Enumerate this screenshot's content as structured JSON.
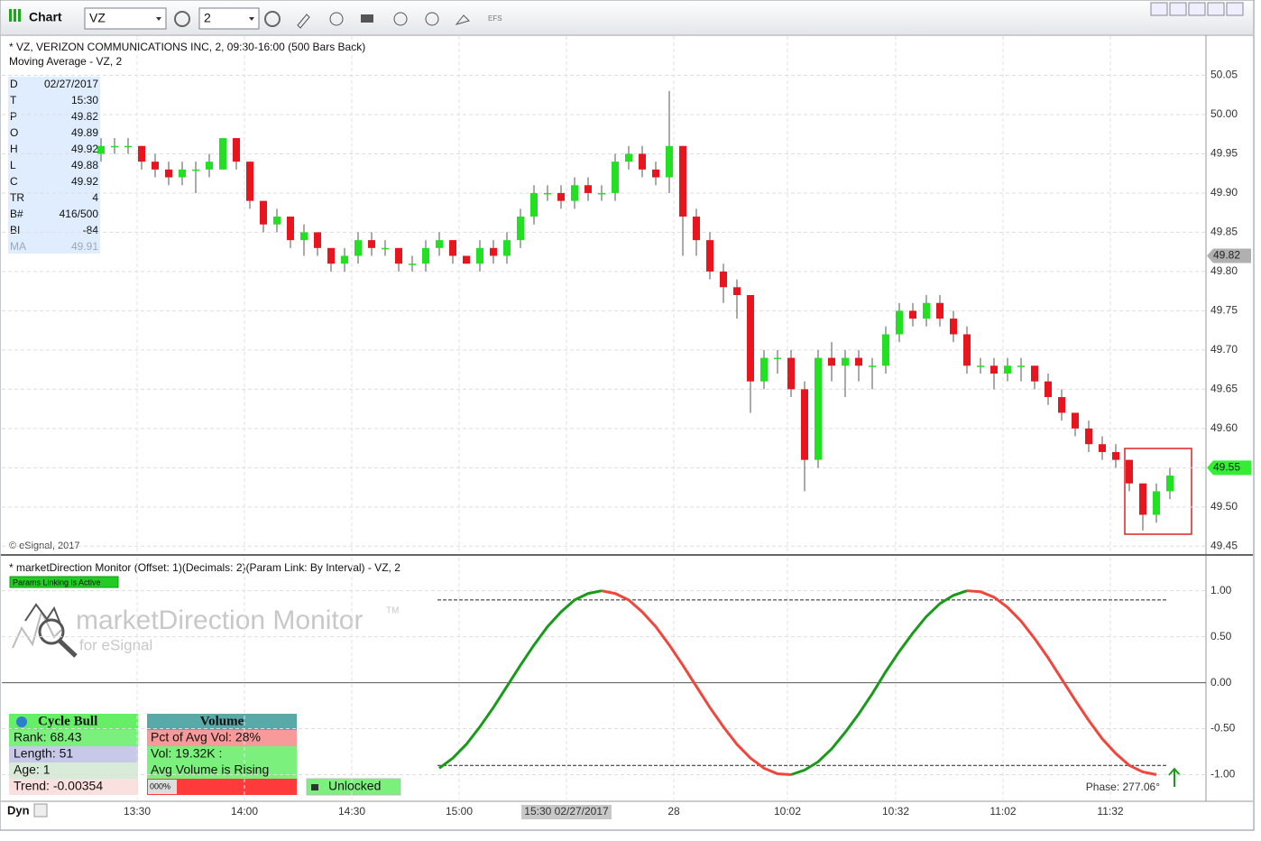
{
  "toolbar": {
    "title": "Chart",
    "symbol": "VZ",
    "interval": "2",
    "efs": "EFS"
  },
  "chart_data": {
    "type": "candlestick",
    "title": "* VZ, VERIZON COMMUNICATIONS INC, 2, 09:30-16:00 (500 Bars Back)",
    "subtitle": "Moving Average - VZ, 2",
    "copyright": "© eSignal, 2017",
    "up_color": "#22e022",
    "down_color": "#e8141e",
    "candles": [
      [
        49.95,
        49.97,
        49.94,
        49.96
      ],
      [
        49.96,
        49.97,
        49.95,
        49.96
      ],
      [
        49.96,
        49.97,
        49.95,
        49.96
      ],
      [
        49.96,
        49.96,
        49.93,
        49.94
      ],
      [
        49.94,
        49.95,
        49.92,
        49.93
      ],
      [
        49.93,
        49.94,
        49.91,
        49.92
      ],
      [
        49.92,
        49.94,
        49.91,
        49.93
      ],
      [
        49.93,
        49.94,
        49.9,
        49.93
      ],
      [
        49.93,
        49.95,
        49.92,
        49.94
      ],
      [
        49.93,
        49.97,
        49.93,
        49.97
      ],
      [
        49.97,
        49.97,
        49.93,
        49.94
      ],
      [
        49.94,
        49.94,
        49.88,
        49.89
      ],
      [
        49.89,
        49.89,
        49.85,
        49.86
      ],
      [
        49.86,
        49.88,
        49.85,
        49.87
      ],
      [
        49.87,
        49.87,
        49.83,
        49.84
      ],
      [
        49.84,
        49.86,
        49.82,
        49.85
      ],
      [
        49.85,
        49.85,
        49.82,
        49.83
      ],
      [
        49.83,
        49.83,
        49.8,
        49.81
      ],
      [
        49.81,
        49.83,
        49.8,
        49.82
      ],
      [
        49.82,
        49.85,
        49.81,
        49.84
      ],
      [
        49.84,
        49.85,
        49.82,
        49.83
      ],
      [
        49.83,
        49.84,
        49.82,
        49.83
      ],
      [
        49.83,
        49.83,
        49.8,
        49.81
      ],
      [
        49.81,
        49.82,
        49.8,
        49.81
      ],
      [
        49.81,
        49.84,
        49.8,
        49.83
      ],
      [
        49.83,
        49.85,
        49.82,
        49.84
      ],
      [
        49.84,
        49.84,
        49.81,
        49.82
      ],
      [
        49.82,
        49.82,
        49.81,
        49.81
      ],
      [
        49.81,
        49.84,
        49.8,
        49.83
      ],
      [
        49.83,
        49.84,
        49.81,
        49.82
      ],
      [
        49.82,
        49.85,
        49.81,
        49.84
      ],
      [
        49.84,
        49.88,
        49.83,
        49.87
      ],
      [
        49.87,
        49.91,
        49.86,
        49.9
      ],
      [
        49.9,
        49.91,
        49.89,
        49.9
      ],
      [
        49.9,
        49.91,
        49.88,
        49.89
      ],
      [
        49.89,
        49.92,
        49.88,
        49.91
      ],
      [
        49.91,
        49.92,
        49.89,
        49.9
      ],
      [
        49.9,
        49.91,
        49.89,
        49.9
      ],
      [
        49.9,
        49.95,
        49.89,
        49.94
      ],
      [
        49.94,
        49.96,
        49.93,
        49.95
      ],
      [
        49.95,
        49.96,
        49.92,
        49.93
      ],
      [
        49.93,
        49.94,
        49.91,
        49.92
      ],
      [
        49.92,
        50.03,
        49.9,
        49.96
      ],
      [
        49.96,
        49.96,
        49.82,
        49.87
      ],
      [
        49.87,
        49.88,
        49.82,
        49.84
      ],
      [
        49.84,
        49.85,
        49.79,
        49.8
      ],
      [
        49.8,
        49.81,
        49.76,
        49.78
      ],
      [
        49.78,
        49.79,
        49.74,
        49.77
      ],
      [
        49.77,
        49.77,
        49.62,
        49.66
      ],
      [
        49.66,
        49.7,
        49.65,
        49.69
      ],
      [
        49.69,
        49.7,
        49.67,
        49.69
      ],
      [
        49.69,
        49.7,
        49.64,
        49.65
      ],
      [
        49.65,
        49.66,
        49.52,
        49.56
      ],
      [
        49.56,
        49.7,
        49.55,
        49.69
      ],
      [
        49.69,
        49.71,
        49.66,
        49.68
      ],
      [
        49.68,
        49.7,
        49.64,
        49.69
      ],
      [
        49.69,
        49.7,
        49.66,
        49.68
      ],
      [
        49.68,
        49.69,
        49.65,
        49.68
      ],
      [
        49.68,
        49.73,
        49.67,
        49.72
      ],
      [
        49.72,
        49.76,
        49.71,
        49.75
      ],
      [
        49.75,
        49.76,
        49.73,
        49.74
      ],
      [
        49.74,
        49.77,
        49.73,
        49.76
      ],
      [
        49.76,
        49.77,
        49.73,
        49.74
      ],
      [
        49.74,
        49.75,
        49.71,
        49.72
      ],
      [
        49.72,
        49.73,
        49.67,
        49.68
      ],
      [
        49.68,
        49.69,
        49.67,
        49.68
      ],
      [
        49.68,
        49.69,
        49.65,
        49.67
      ],
      [
        49.67,
        49.69,
        49.66,
        49.68
      ],
      [
        49.68,
        49.69,
        49.66,
        49.68
      ],
      [
        49.68,
        49.68,
        49.65,
        49.66
      ],
      [
        49.66,
        49.67,
        49.63,
        49.64
      ],
      [
        49.64,
        49.65,
        49.61,
        49.62
      ],
      [
        49.62,
        49.62,
        49.59,
        49.6
      ],
      [
        49.6,
        49.61,
        49.57,
        49.58
      ],
      [
        49.58,
        49.59,
        49.56,
        49.57
      ],
      [
        49.57,
        49.58,
        49.55,
        49.56
      ],
      [
        49.56,
        49.56,
        49.52,
        49.53
      ],
      [
        49.53,
        49.53,
        49.47,
        49.49
      ],
      [
        49.49,
        49.53,
        49.48,
        49.52
      ],
      [
        49.52,
        49.55,
        49.51,
        49.54
      ]
    ],
    "ylim": [
      49.44,
      50.1
    ],
    "yticks": [
      50.05,
      {
        "value": 50,
        "label": "50.00"
      },
      49.95,
      {
        "value": 49.9,
        "label": "49.90"
      },
      49.85,
      {
        "value": 49.8,
        "label": "49.80"
      },
      49.75,
      {
        "value": 49.7,
        "label": "49.70"
      },
      49.65,
      {
        "value": 49.6,
        "label": "49.60"
      },
      49.55,
      {
        "value": 49.5,
        "label": "49.50"
      },
      49.45
    ],
    "grid": true,
    "last_price": 49.82,
    "current_price": 49.55,
    "data_window": [
      [
        "D",
        "02/27/2017"
      ],
      [
        "T",
        "15:30"
      ],
      [
        "P",
        "49.82"
      ],
      [
        "O",
        "49.89"
      ],
      [
        "H",
        "49.92"
      ],
      [
        "L",
        "49.88"
      ],
      [
        "C",
        "49.92"
      ],
      [
        "TR",
        "4"
      ],
      [
        "B#",
        "416/500"
      ],
      [
        "BI",
        "-84"
      ],
      [
        "MA",
        "49.91"
      ]
    ],
    "time_labels": [
      "13:30",
      "14:00",
      "14:30",
      "15:00",
      "15:30 02/27/2017",
      "28",
      "10:02",
      "10:32",
      "11:02",
      "11:32"
    ]
  },
  "indicator": {
    "type": "line",
    "title": "* marketDirection Monitor (Offset: 1)(Decimals: 2)(Param Link: By Interval) - VZ, 2",
    "badge": "Params Linking is Active",
    "logo": "marketDirection Monitor",
    "tm": "TM",
    "logo_sub": "for eSignal",
    "rising_color": "#1a9a1a",
    "falling_color": "#f0463c",
    "values": [
      -0.93,
      -0.82,
      -0.67,
      -0.48,
      -0.27,
      -0.04,
      0.19,
      0.41,
      0.61,
      0.77,
      0.9,
      0.97,
      1.0,
      0.97,
      0.9,
      0.77,
      0.61,
      0.41,
      0.19,
      -0.04,
      -0.27,
      -0.48,
      -0.67,
      -0.82,
      -0.93,
      -0.99,
      -1.0,
      -0.95,
      -0.86,
      -0.72,
      -0.54,
      -0.34,
      -0.12,
      0.12,
      0.34,
      0.54,
      0.72,
      0.86,
      0.95,
      1.0,
      0.99,
      0.93,
      0.82,
      0.67,
      0.48,
      0.27,
      0.04,
      -0.19,
      -0.41,
      -0.61,
      -0.77,
      -0.9,
      -0.97,
      -1.0
    ],
    "levels": [
      0.9,
      -0.9
    ],
    "ylim": [
      -1.27,
      1.36
    ],
    "yticks": [
      {
        "value": 1,
        "label": "1.00"
      },
      {
        "value": 0.5,
        "label": "0.50"
      },
      {
        "value": 0,
        "label": "0.00"
      },
      {
        "value": -0.5,
        "label": "-0.50"
      },
      {
        "value": -1,
        "label": "-1.00"
      }
    ],
    "phase": "Phase: 277.06°",
    "cycle": {
      "title": "Cycle Bull",
      "rows": [
        "Rank: 68.43",
        "Length: 51",
        "Age: 1",
        "Trend: -0.00354"
      ]
    },
    "volume": {
      "title": "Volume",
      "rows": [
        "Pct of Avg Vol: 28%",
        "Vol: 19.32K :",
        "Avg Volume is Rising"
      ],
      "bar_label": "000%"
    },
    "lock": "Unlocked"
  },
  "footer": {
    "mode": "Dyn"
  }
}
